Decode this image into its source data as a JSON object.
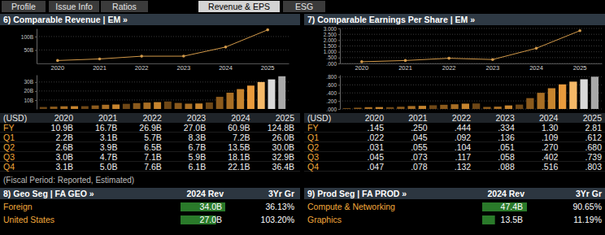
{
  "tabs": [
    {
      "label": "Profile",
      "active": false
    },
    {
      "label": "Issue Info",
      "active": false
    },
    {
      "label": "Ratios",
      "active": false
    },
    {
      "label": "Revenue & EPS",
      "active": true
    },
    {
      "label": "ESG",
      "active": false
    }
  ],
  "chart_data": [
    {
      "type": "line",
      "title": "6) Comparable Revenue | EM »",
      "categories": [
        "2020",
        "2021",
        "2022",
        "2023",
        "2024",
        "2025"
      ],
      "values": [
        10.9,
        16.7,
        26.9,
        27.0,
        60.9,
        124.8
      ],
      "color": "#d39a4a",
      "marker": "circle",
      "ylim": [
        0,
        130
      ],
      "yticks": [
        {
          "value": 50,
          "label": "50B"
        },
        {
          "value": 100,
          "label": "100B"
        }
      ],
      "grid": true
    },
    {
      "type": "bar",
      "categories": [
        null,
        null,
        null,
        null,
        null,
        null,
        null,
        null,
        null,
        null,
        null,
        null,
        null,
        null,
        null,
        null,
        null,
        null,
        null,
        null,
        null,
        null,
        null,
        null
      ],
      "values": [
        2.2,
        2.6,
        3.0,
        3.1,
        3.1,
        3.9,
        4.7,
        5.0,
        5.7,
        6.5,
        7.1,
        7.6,
        8.3,
        6.7,
        5.9,
        6.1,
        7.2,
        13.5,
        18.1,
        22.1,
        26.0,
        30.0,
        32.9,
        36.4
      ],
      "colors": [
        "#6e4716",
        "#8b5a1c",
        "#a86e24",
        "#c6842e",
        "#6e4716",
        "#8b5a1c",
        "#a86e24",
        "#c6842e",
        "#6e4716",
        "#8b5a1c",
        "#a86e24",
        "#c6842e",
        "#6e4716",
        "#8b5a1c",
        "#a86e24",
        "#c6842e",
        "#6e4716",
        "#8b5a1c",
        "#a86e24",
        "#c6842e",
        "#e89a3c",
        "#f5b968",
        "#d9d9d9",
        "#a9a9a9"
      ],
      "ylim": [
        0,
        38
      ],
      "yticks": [
        {
          "value": 10,
          "label": "10B"
        },
        {
          "value": 20,
          "label": "20B"
        },
        {
          "value": 30,
          "label": "30B"
        }
      ],
      "grid": true,
      "tick_labels": "y"
    },
    {
      "type": "line",
      "title": "7) Comparable Earnings Per Share | EM »",
      "categories": [
        "2020",
        "2021",
        "2022",
        "2023",
        "2024",
        "2025"
      ],
      "values": [
        0.145,
        0.25,
        0.444,
        0.334,
        1.3,
        2.81
      ],
      "color": "#d39a4a",
      "marker": "circle",
      "ylim": [
        0,
        3
      ],
      "yticks": [
        {
          "value": 0,
          "label": ".000"
        },
        {
          "value": 0.5,
          "label": ".500"
        },
        {
          "value": 1,
          "label": "1.000"
        },
        {
          "value": 1.5,
          "label": "1.500"
        },
        {
          "value": 2,
          "label": "2.000"
        },
        {
          "value": 2.5,
          "label": "2.500"
        },
        {
          "value": 3,
          "label": "3.000"
        }
      ],
      "grid": true
    },
    {
      "type": "bar",
      "categories": [
        null,
        null,
        null,
        null,
        null,
        null,
        null,
        null,
        null,
        null,
        null,
        null,
        null,
        null,
        null,
        null,
        null,
        null,
        null,
        null,
        null,
        null,
        null,
        null
      ],
      "values": [
        0.022,
        0.031,
        0.045,
        0.047,
        0.045,
        0.055,
        0.073,
        0.078,
        0.092,
        0.104,
        0.117,
        0.132,
        0.136,
        0.051,
        0.058,
        0.088,
        0.109,
        0.27,
        0.402,
        0.516,
        0.612,
        0.68,
        0.739,
        0.803
      ],
      "colors": [
        "#6e4716",
        "#8b5a1c",
        "#a86e24",
        "#c6842e",
        "#6e4716",
        "#8b5a1c",
        "#a86e24",
        "#c6842e",
        "#6e4716",
        "#8b5a1c",
        "#a86e24",
        "#c6842e",
        "#6e4716",
        "#8b5a1c",
        "#a86e24",
        "#c6842e",
        "#6e4716",
        "#8b5a1c",
        "#a86e24",
        "#c6842e",
        "#e89a3c",
        "#f5b968",
        "#d9d9d9",
        "#a9a9a9"
      ],
      "ylim": [
        0,
        0.85
      ],
      "yticks": [
        {
          "value": 0,
          "label": ".000"
        },
        {
          "value": 0.2,
          "label": ".200"
        },
        {
          "value": 0.4,
          "label": ".400"
        },
        {
          "value": 0.6,
          "label": ".600"
        },
        {
          "value": 0.8,
          "label": ".800"
        }
      ],
      "grid": true,
      "tick_labels": "y"
    }
  ],
  "tables": [
    {
      "header": [
        "(USD)",
        "2020",
        "2021",
        "2022",
        "2023",
        "2024",
        "2025"
      ],
      "rows": [
        [
          "FY",
          "10.9B",
          "16.7B",
          "26.9B",
          "27.0B",
          "60.9B",
          "124.8B"
        ],
        [
          "Q1",
          "2.2B",
          "3.1B",
          "5.7B",
          "8.3B",
          "7.2B",
          "26.0B"
        ],
        [
          "Q2",
          "2.6B",
          "3.9B",
          "6.5B",
          "6.7B",
          "13.5B",
          "30.0B"
        ],
        [
          "Q3",
          "3.0B",
          "4.7B",
          "7.1B",
          "5.9B",
          "18.1B",
          "32.9B"
        ],
        [
          "Q4",
          "3.1B",
          "5.0B",
          "7.6B",
          "6.1B",
          "22.1B",
          "36.4B"
        ]
      ]
    },
    {
      "header": [
        "(USD)",
        "2020",
        "2021",
        "2022",
        "2023",
        "2024",
        "2025"
      ],
      "rows": [
        [
          "FY",
          ".145",
          ".250",
          ".444",
          ".334",
          "1.30",
          "2.81"
        ],
        [
          "Q1",
          ".022",
          ".045",
          ".092",
          ".136",
          ".109",
          ".612"
        ],
        [
          "Q2",
          ".031",
          ".055",
          ".104",
          ".051",
          ".270",
          ".680"
        ],
        [
          "Q3",
          ".045",
          ".073",
          ".117",
          ".058",
          ".402",
          ".739"
        ],
        [
          "Q4",
          ".047",
          ".078",
          ".132",
          ".088",
          ".516",
          ".803"
        ]
      ]
    }
  ],
  "fiscal_note": "(Fiscal Period: Reported, Estimated)",
  "segments": [
    {
      "title": "8) Geo Seg | FA GEO »",
      "columns": [
        "2024 Rev",
        "3Yr Gr"
      ],
      "rows": [
        {
          "label": "Foreign",
          "rev": "34.0B",
          "rev_value": 34.0,
          "growth": "36.13%"
        },
        {
          "label": "United States",
          "rev": "27.0B",
          "rev_value": 27.0,
          "growth": "103.20%"
        }
      ]
    },
    {
      "title": "9) Prod Seg | FA PROD »",
      "columns": [
        "2024 Rev",
        "3Yr Gr"
      ],
      "rows": [
        {
          "label": "Compute & Networking",
          "rev": "47.4B",
          "rev_value": 47.4,
          "growth": "90.65%"
        },
        {
          "label": "Graphics",
          "rev": "13.5B",
          "rev_value": 13.5,
          "growth": "11.19%"
        }
      ]
    }
  ]
}
